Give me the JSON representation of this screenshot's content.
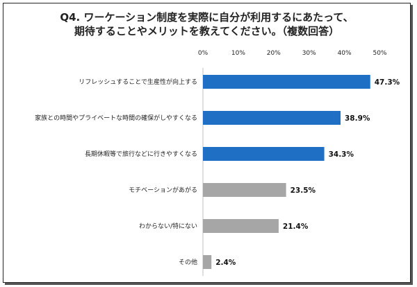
{
  "chart_data": {
    "type": "bar",
    "orientation": "horizontal",
    "title": [
      "Q4.  ワーケーション制度を実際に自分が利用するにあたって、",
      "期待することやメリットを教えてください。（複数回答）"
    ],
    "categories": [
      "リフレッシュすることで生産性が向上する",
      "家族との時間やプライベートな時間の確保がしやすくなる",
      "長期休暇等で旅行などに行きやすくなる",
      "モチベーションがあがる",
      "わからない/特にない",
      "その他"
    ],
    "values": [
      47.3,
      38.9,
      34.3,
      23.5,
      21.4,
      2.4
    ],
    "value_labels": [
      "47.3%",
      "38.9%",
      "34.3%",
      "23.5%",
      "21.4%",
      "2.4%"
    ],
    "bar_colors": [
      "#1f6fc5",
      "#1f6fc5",
      "#1f6fc5",
      "#a6a6a6",
      "#a6a6a6",
      "#a6a6a6"
    ],
    "xlim": [
      0,
      50
    ],
    "ticks": [
      0,
      10,
      20,
      30,
      40,
      50
    ],
    "tick_labels": [
      "0%",
      "10%",
      "20%",
      "30%",
      "40%",
      "50%"
    ],
    "grid": false,
    "legend": "none"
  }
}
